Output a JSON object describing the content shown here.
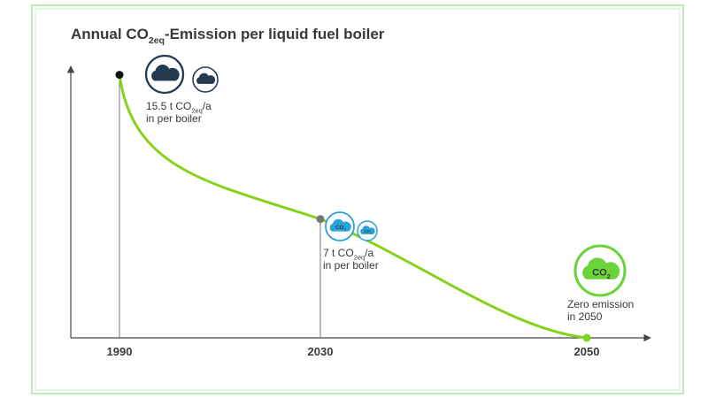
{
  "chart_data": {
    "type": "line",
    "title": [
      "Annual CO",
      "2eq",
      "-Emission per liquid fuel boiler"
    ],
    "categories": [
      "1990",
      "2030",
      "2050"
    ],
    "values": [
      15.5,
      7,
      0
    ],
    "ylim": [
      0,
      16
    ],
    "line_color": "#84d21a",
    "point_colors": [
      "#111111",
      "#777777",
      "#7ed321"
    ],
    "icon_text": [
      "CO",
      "2"
    ],
    "annotations": [
      {
        "lines": [
          [
            "15.5 t CO",
            "2eq",
            "/a"
          ],
          [
            "in per boiler"
          ]
        ]
      },
      {
        "lines": [
          [
            "7 t CO",
            "2eq",
            "/a"
          ],
          [
            "in per boiler"
          ]
        ]
      },
      {
        "lines": [
          [
            "Zero emission"
          ],
          [
            "in 2050"
          ]
        ]
      }
    ]
  }
}
